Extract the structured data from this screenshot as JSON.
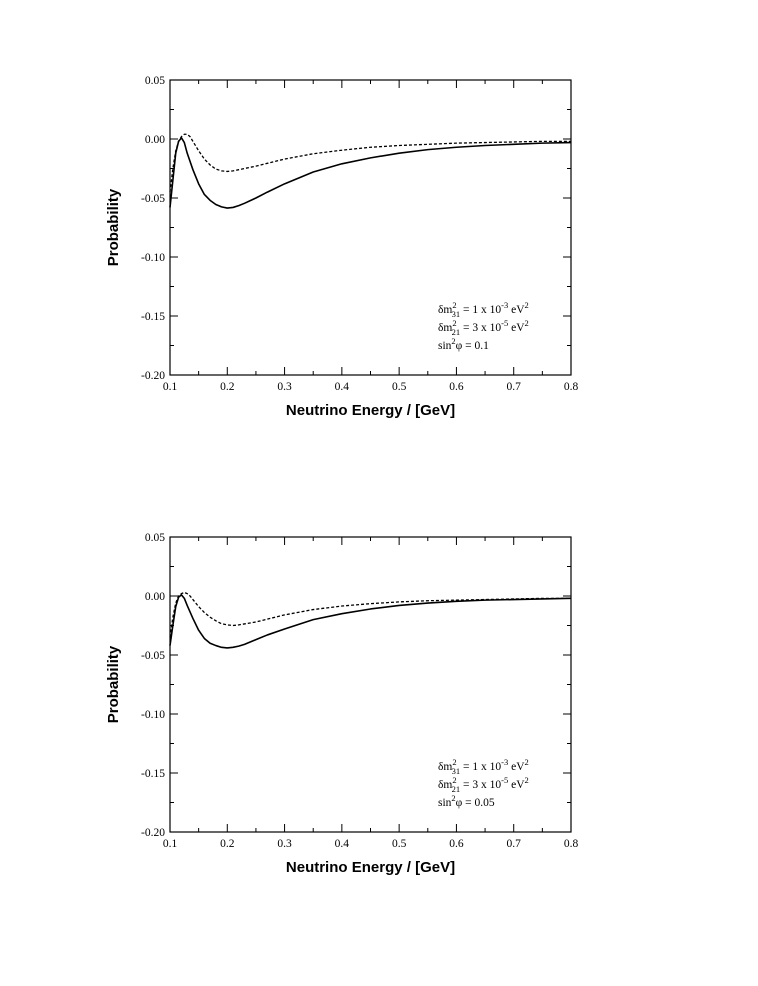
{
  "chart_data": [
    {
      "type": "line",
      "xlabel": "Neutrino Energy / [GeV]",
      "ylabel": "Probability",
      "xlim": [
        0.1,
        0.8
      ],
      "ylim": [
        -0.2,
        0.05
      ],
      "xticks": [
        "0.1",
        "0.2",
        "0.3",
        "0.4",
        "0.5",
        "0.6",
        "0.7",
        "0.8"
      ],
      "yticks": [
        "0.05",
        "0.00",
        "-0.05",
        "-0.10",
        "-0.15",
        "-0.20"
      ],
      "grid": false,
      "annotation": [
        {
          "base": "δm",
          "sup1": "2",
          "sub": "31",
          "rest": " = 1 x 10",
          "sup2": "-3",
          "tail": " eV",
          "sup3": "2"
        },
        {
          "base": "δm",
          "sup1": "2",
          "sub": "21",
          "rest": " = 3 x 10",
          "sup2": "-5",
          "tail": " eV",
          "sup3": "2"
        },
        {
          "base": "sin",
          "sup1": "2",
          "sub": "",
          "rest": "φ = 0.1",
          "sup2": "",
          "tail": "",
          "sup3": ""
        }
      ],
      "series": [
        {
          "style": "solid",
          "x": [
            0.1,
            0.105,
            0.11,
            0.115,
            0.12,
            0.125,
            0.13,
            0.14,
            0.15,
            0.16,
            0.17,
            0.18,
            0.19,
            0.2,
            0.21,
            0.22,
            0.23,
            0.25,
            0.27,
            0.3,
            0.35,
            0.4,
            0.45,
            0.5,
            0.55,
            0.6,
            0.65,
            0.7,
            0.75,
            0.8
          ],
          "y": [
            -0.058,
            -0.035,
            -0.012,
            -0.002,
            0.001,
            -0.003,
            -0.012,
            -0.026,
            -0.038,
            -0.047,
            -0.052,
            -0.0555,
            -0.0575,
            -0.0585,
            -0.058,
            -0.0565,
            -0.0545,
            -0.05,
            -0.045,
            -0.038,
            -0.028,
            -0.021,
            -0.016,
            -0.012,
            -0.009,
            -0.007,
            -0.0055,
            -0.0045,
            -0.0035,
            -0.003
          ]
        },
        {
          "style": "dashed",
          "x": [
            0.1,
            0.105,
            0.11,
            0.115,
            0.12,
            0.125,
            0.13,
            0.135,
            0.14,
            0.15,
            0.16,
            0.17,
            0.18,
            0.19,
            0.2,
            0.21,
            0.22,
            0.25,
            0.3,
            0.35,
            0.4,
            0.45,
            0.5,
            0.55,
            0.6,
            0.65,
            0.7,
            0.75,
            0.8
          ],
          "y": [
            -0.045,
            -0.025,
            -0.01,
            -0.002,
            0.002,
            0.004,
            0.004,
            0.002,
            -0.002,
            -0.01,
            -0.017,
            -0.022,
            -0.0255,
            -0.027,
            -0.0275,
            -0.027,
            -0.026,
            -0.023,
            -0.017,
            -0.0125,
            -0.0095,
            -0.007,
            -0.0055,
            -0.0045,
            -0.0035,
            -0.003,
            -0.0025,
            -0.002,
            -0.002
          ]
        }
      ]
    },
    {
      "type": "line",
      "xlabel": "Neutrino Energy / [GeV]",
      "ylabel": "Probability",
      "xlim": [
        0.1,
        0.8
      ],
      "ylim": [
        -0.2,
        0.05
      ],
      "xticks": [
        "0.1",
        "0.2",
        "0.3",
        "0.4",
        "0.5",
        "0.6",
        "0.7",
        "0.8"
      ],
      "yticks": [
        "0.05",
        "0.00",
        "-0.05",
        "-0.10",
        "-0.15",
        "-0.20"
      ],
      "grid": false,
      "annotation": [
        {
          "base": "δm",
          "sup1": "2",
          "sub": "31",
          "rest": " = 1 x 10",
          "sup2": "-3",
          "tail": " eV",
          "sup3": "2"
        },
        {
          "base": "δm",
          "sup1": "2",
          "sub": "21",
          "rest": " = 3 x 10",
          "sup2": "-5",
          "tail": " eV",
          "sup3": "2"
        },
        {
          "base": "sin",
          "sup1": "2",
          "sub": "",
          "rest": "φ = 0.05",
          "sup2": "",
          "tail": "",
          "sup3": ""
        }
      ],
      "series": [
        {
          "style": "solid",
          "x": [
            0.1,
            0.105,
            0.11,
            0.115,
            0.12,
            0.125,
            0.13,
            0.14,
            0.15,
            0.16,
            0.17,
            0.18,
            0.19,
            0.2,
            0.21,
            0.22,
            0.23,
            0.25,
            0.27,
            0.3,
            0.35,
            0.4,
            0.45,
            0.5,
            0.55,
            0.6,
            0.65,
            0.7,
            0.75,
            0.8
          ],
          "y": [
            -0.042,
            -0.025,
            -0.009,
            -0.001,
            0.001,
            -0.002,
            -0.008,
            -0.019,
            -0.029,
            -0.036,
            -0.04,
            -0.042,
            -0.0435,
            -0.044,
            -0.0435,
            -0.0425,
            -0.041,
            -0.037,
            -0.033,
            -0.028,
            -0.02,
            -0.015,
            -0.011,
            -0.008,
            -0.006,
            -0.0045,
            -0.0035,
            -0.003,
            -0.0025,
            -0.002
          ]
        },
        {
          "style": "dashed",
          "x": [
            0.1,
            0.105,
            0.11,
            0.115,
            0.12,
            0.125,
            0.13,
            0.135,
            0.14,
            0.15,
            0.16,
            0.17,
            0.18,
            0.19,
            0.2,
            0.21,
            0.22,
            0.25,
            0.3,
            0.35,
            0.4,
            0.45,
            0.5,
            0.55,
            0.6,
            0.65,
            0.7,
            0.75,
            0.8
          ],
          "y": [
            -0.035,
            -0.018,
            -0.006,
            0.0,
            0.002,
            0.003,
            0.002,
            0.0,
            -0.003,
            -0.009,
            -0.014,
            -0.018,
            -0.021,
            -0.0235,
            -0.0245,
            -0.025,
            -0.0245,
            -0.022,
            -0.016,
            -0.0115,
            -0.0085,
            -0.0065,
            -0.005,
            -0.004,
            -0.0035,
            -0.003,
            -0.0025,
            -0.002,
            -0.002
          ]
        }
      ]
    }
  ]
}
